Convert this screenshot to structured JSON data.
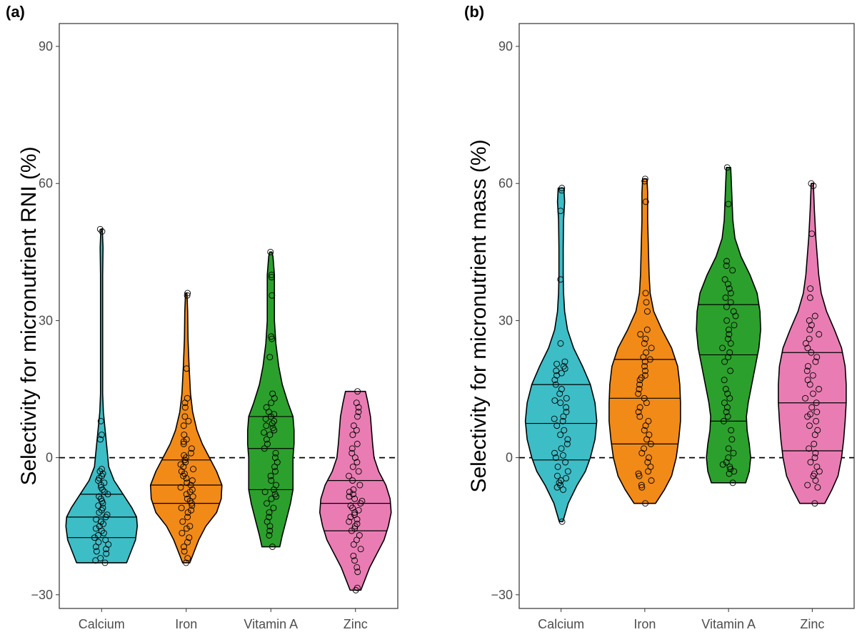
{
  "chart_data": [
    {
      "type": "violin",
      "panel_label": "(a)",
      "title": "",
      "xlabel": "",
      "ylabel": "Selectivity for micronutrient RNI (%)",
      "ylim": [
        -33,
        95
      ],
      "yticks": [
        -30,
        0,
        30,
        60,
        90
      ],
      "ytick_labels": [
        "−30",
        "0",
        "30",
        "60",
        "90"
      ],
      "reference_line": 0,
      "categories": [
        "Calcium",
        "Iron",
        "Vitamin A",
        "Zinc"
      ],
      "series": [
        {
          "name": "Calcium",
          "color": "#3dbdc6",
          "min": -23,
          "max": 50,
          "quartiles": [
            -17.5,
            -13,
            -8
          ],
          "density": [
            [
              -23,
              0.7
            ],
            [
              -21,
              0.8
            ],
            [
              -18,
              0.95
            ],
            [
              -15,
              1.0
            ],
            [
              -13,
              0.98
            ],
            [
              -11,
              0.85
            ],
            [
              -8,
              0.6
            ],
            [
              -5,
              0.35
            ],
            [
              -2,
              0.2
            ],
            [
              2,
              0.15
            ],
            [
              6,
              0.1
            ],
            [
              10,
              0.05
            ],
            [
              14,
              0.03
            ],
            [
              20,
              0.03
            ],
            [
              30,
              0.03
            ],
            [
              40,
              0.03
            ],
            [
              46,
              0.04
            ],
            [
              50,
              0.02
            ]
          ],
          "points": [
            -23,
            -22.5,
            -22,
            -21,
            -20.5,
            -20,
            -19.5,
            -19,
            -18.5,
            -18,
            -17.5,
            -17,
            -16.5,
            -16,
            -15.5,
            -15,
            -14.5,
            -14,
            -14,
            -13.5,
            -13,
            -12.5,
            -12,
            -11.5,
            -11,
            -10.5,
            -10,
            -9.5,
            -9,
            -8.5,
            -8,
            -7.5,
            -7,
            -6.5,
            -6,
            -5.5,
            -5,
            -4.5,
            -4,
            -3.5,
            -3,
            -2.5,
            4,
            5,
            8,
            49.5,
            50
          ]
        },
        {
          "name": "Iron",
          "color": "#f28a18",
          "min": -23,
          "max": 36,
          "quartiles": [
            -10,
            -6,
            -0.5
          ],
          "density": [
            [
              -23,
              0.1
            ],
            [
              -21,
              0.2
            ],
            [
              -18,
              0.35
            ],
            [
              -15,
              0.55
            ],
            [
              -12,
              0.85
            ],
            [
              -9,
              0.98
            ],
            [
              -6,
              1.0
            ],
            [
              -3,
              0.85
            ],
            [
              0,
              0.65
            ],
            [
              3,
              0.45
            ],
            [
              6,
              0.3
            ],
            [
              10,
              0.18
            ],
            [
              14,
              0.12
            ],
            [
              20,
              0.08
            ],
            [
              26,
              0.05
            ],
            [
              32,
              0.04
            ],
            [
              36,
              0.02
            ]
          ],
          "points": [
            -23,
            -22,
            -20.5,
            -19.5,
            -18.5,
            -17.5,
            -16.5,
            -15.5,
            -15,
            -14,
            -13,
            -12,
            -11.5,
            -11,
            -10.5,
            -10,
            -9.5,
            -9,
            -8.5,
            -8,
            -7.5,
            -7,
            -6.5,
            -6,
            -5.5,
            -5,
            -4.5,
            -4,
            -3.5,
            -3,
            -2.5,
            -2,
            -1.5,
            -1,
            -0.5,
            0,
            0.5,
            1,
            2,
            3,
            3.5,
            4,
            5,
            7,
            8,
            9,
            11,
            12,
            13,
            19.5,
            35.5,
            36
          ]
        },
        {
          "name": "Vitamin A",
          "color": "#2ca02c",
          "min": -19.5,
          "max": 45,
          "quartiles": [
            -7,
            2,
            9
          ],
          "density": [
            [
              -19.5,
              0.25
            ],
            [
              -17,
              0.32
            ],
            [
              -14,
              0.42
            ],
            [
              -10,
              0.55
            ],
            [
              -7,
              0.62
            ],
            [
              -3,
              0.62
            ],
            [
              0,
              0.62
            ],
            [
              3,
              0.65
            ],
            [
              6,
              0.65
            ],
            [
              9,
              0.62
            ],
            [
              12,
              0.48
            ],
            [
              16,
              0.32
            ],
            [
              20,
              0.22
            ],
            [
              25,
              0.14
            ],
            [
              30,
              0.1
            ],
            [
              35,
              0.1
            ],
            [
              40,
              0.1
            ],
            [
              44,
              0.06
            ],
            [
              45,
              0.03
            ]
          ],
          "points": [
            -19.5,
            -17,
            -16,
            -15,
            -14,
            -13,
            -12,
            -11,
            -10,
            -9,
            -8.5,
            -8,
            -7.5,
            -7,
            -6,
            -5,
            -4,
            -3,
            -2,
            -1,
            0,
            1,
            2,
            3,
            4,
            5,
            5.5,
            6,
            6.5,
            7,
            7.5,
            8,
            8.5,
            9,
            9.5,
            10,
            11,
            12,
            13,
            14,
            22,
            26,
            26.5,
            35.5,
            39.5,
            40,
            45
          ]
        },
        {
          "name": "Zinc",
          "color": "#e97db3",
          "min": -29,
          "max": 14.5,
          "quartiles": [
            -16,
            -10,
            -5
          ],
          "density": [
            [
              -29,
              0.15
            ],
            [
              -27,
              0.25
            ],
            [
              -24,
              0.4
            ],
            [
              -21,
              0.6
            ],
            [
              -18,
              0.8
            ],
            [
              -15,
              0.92
            ],
            [
              -12,
              1.0
            ],
            [
              -9,
              0.97
            ],
            [
              -6,
              0.85
            ],
            [
              -3,
              0.65
            ],
            [
              0,
              0.52
            ],
            [
              3,
              0.48
            ],
            [
              6,
              0.45
            ],
            [
              9,
              0.42
            ],
            [
              12,
              0.35
            ],
            [
              14.5,
              0.28
            ]
          ],
          "points": [
            -29,
            -28.5,
            -25,
            -24,
            -22.5,
            -21.5,
            -20,
            -19,
            -18,
            -17,
            -16,
            -15.5,
            -15,
            -14.5,
            -14,
            -13.5,
            -13,
            -12.5,
            -12,
            -11.5,
            -11,
            -10.5,
            -10,
            -9.5,
            -9,
            -8.5,
            -8,
            -7.5,
            -7,
            -6,
            -5,
            -4,
            -3,
            -2,
            -1,
            0,
            1,
            2,
            3,
            5,
            6,
            7,
            9,
            10,
            11,
            12,
            14.5
          ]
        }
      ]
    },
    {
      "type": "violin",
      "panel_label": "(b)",
      "title": "",
      "xlabel": "",
      "ylabel": "Selectivity for micronutrient mass (%)",
      "ylim": [
        -33,
        95
      ],
      "yticks": [
        -30,
        0,
        30,
        60,
        90
      ],
      "ytick_labels": [
        "−30",
        "0",
        "30",
        "60",
        "90"
      ],
      "reference_line": 0,
      "categories": [
        "Calcium",
        "Iron",
        "Vitamin A",
        "Zinc"
      ],
      "series": [
        {
          "name": "Calcium",
          "color": "#3dbdc6",
          "min": -14,
          "max": 59,
          "quartiles": [
            -0.5,
            7.5,
            16
          ],
          "density": [
            [
              -14,
              0.05
            ],
            [
              -10,
              0.2
            ],
            [
              -6,
              0.45
            ],
            [
              -3,
              0.68
            ],
            [
              0,
              0.82
            ],
            [
              4,
              0.95
            ],
            [
              8,
              1.0
            ],
            [
              12,
              0.95
            ],
            [
              16,
              0.82
            ],
            [
              20,
              0.6
            ],
            [
              24,
              0.35
            ],
            [
              28,
              0.18
            ],
            [
              32,
              0.1
            ],
            [
              36,
              0.07
            ],
            [
              40,
              0.06
            ],
            [
              46,
              0.06
            ],
            [
              52,
              0.07
            ],
            [
              56,
              0.1
            ],
            [
              59,
              0.08
            ]
          ],
          "points": [
            -14,
            -7,
            -6.5,
            -6,
            -5.5,
            -5,
            -4.5,
            -4,
            -3,
            -2,
            -1,
            0,
            0.5,
            1,
            2,
            3,
            4,
            5,
            6,
            7,
            8,
            8.5,
            9,
            10,
            11,
            12,
            12.5,
            13,
            14,
            15,
            16,
            17,
            18,
            18.5,
            19,
            19.5,
            20,
            20.5,
            21,
            25,
            39,
            54,
            58.5,
            59
          ]
        },
        {
          "name": "Iron",
          "color": "#f28a18",
          "min": -10,
          "max": 61,
          "quartiles": [
            3,
            13,
            21.5
          ],
          "density": [
            [
              -10,
              0.3
            ],
            [
              -7,
              0.55
            ],
            [
              -4,
              0.75
            ],
            [
              0,
              0.88
            ],
            [
              4,
              0.95
            ],
            [
              8,
              1.0
            ],
            [
              12,
              1.0
            ],
            [
              16,
              0.98
            ],
            [
              20,
              0.92
            ],
            [
              24,
              0.75
            ],
            [
              28,
              0.48
            ],
            [
              32,
              0.25
            ],
            [
              36,
              0.15
            ],
            [
              40,
              0.12
            ],
            [
              46,
              0.1
            ],
            [
              52,
              0.08
            ],
            [
              58,
              0.08
            ],
            [
              61,
              0.06
            ]
          ],
          "points": [
            -10,
            -6.5,
            -6,
            -5,
            -4,
            -3.5,
            -3,
            -2,
            -1,
            0,
            1,
            2,
            3,
            4,
            5,
            6,
            7,
            8,
            9,
            10,
            11,
            12,
            13,
            14,
            15,
            16,
            17,
            17.5,
            18,
            19,
            20,
            21,
            21.5,
            22,
            23,
            24,
            25,
            26,
            27,
            28,
            32,
            34,
            36,
            56,
            60.5,
            61
          ]
        },
        {
          "name": "Vitamin A",
          "color": "#2ca02c",
          "min": -5.5,
          "max": 63.5,
          "quartiles": [
            8,
            22.5,
            33.5
          ],
          "density": [
            [
              -5.5,
              0.48
            ],
            [
              -3,
              0.58
            ],
            [
              0,
              0.62
            ],
            [
              3,
              0.58
            ],
            [
              6,
              0.52
            ],
            [
              9,
              0.5
            ],
            [
              12,
              0.55
            ],
            [
              16,
              0.65
            ],
            [
              20,
              0.75
            ],
            [
              24,
              0.85
            ],
            [
              28,
              0.9
            ],
            [
              32,
              0.88
            ],
            [
              36,
              0.8
            ],
            [
              40,
              0.6
            ],
            [
              44,
              0.35
            ],
            [
              48,
              0.18
            ],
            [
              52,
              0.12
            ],
            [
              56,
              0.1
            ],
            [
              60,
              0.08
            ],
            [
              63.5,
              0.06
            ]
          ],
          "points": [
            -5.5,
            -3.5,
            -3,
            -2.5,
            -2,
            -1.5,
            -1,
            0,
            1,
            2,
            4,
            6,
            8,
            9,
            10,
            11,
            12,
            13,
            14,
            15,
            17,
            19,
            21,
            22,
            23,
            24,
            25,
            26,
            27,
            28,
            29,
            30,
            31,
            32,
            33,
            34,
            35,
            36,
            37,
            38,
            39,
            41,
            42,
            43,
            55.5,
            63.5
          ]
        },
        {
          "name": "Zinc",
          "color": "#e97db3",
          "min": -10,
          "max": 60,
          "quartiles": [
            1.5,
            12,
            23
          ],
          "density": [
            [
              -10,
              0.35
            ],
            [
              -7,
              0.55
            ],
            [
              -4,
              0.72
            ],
            [
              0,
              0.82
            ],
            [
              4,
              0.88
            ],
            [
              8,
              0.92
            ],
            [
              12,
              0.95
            ],
            [
              16,
              0.95
            ],
            [
              20,
              0.92
            ],
            [
              24,
              0.82
            ],
            [
              28,
              0.62
            ],
            [
              32,
              0.4
            ],
            [
              36,
              0.25
            ],
            [
              40,
              0.18
            ],
            [
              44,
              0.14
            ],
            [
              48,
              0.1
            ],
            [
              54,
              0.06
            ],
            [
              60,
              0.03
            ]
          ],
          "points": [
            -10,
            -6.5,
            -6,
            -5,
            -4,
            -3.5,
            -3,
            -2,
            -1,
            0,
            1,
            2,
            3,
            5,
            6,
            7,
            8,
            9,
            9.5,
            10,
            11,
            12,
            13,
            14,
            15,
            16,
            17,
            18,
            19,
            20,
            21,
            22,
            23,
            24,
            25,
            26,
            27,
            28,
            29,
            30,
            31,
            35,
            37,
            49,
            59.5,
            60
          ]
        }
      ]
    }
  ]
}
